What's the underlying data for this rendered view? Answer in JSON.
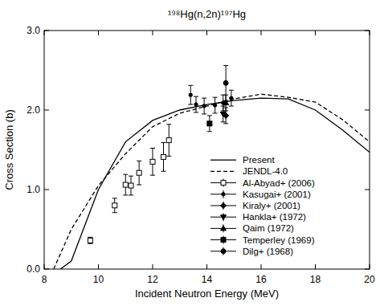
{
  "chart_data": {
    "type": "line",
    "title": "¹⁹⁸Hg(n,2n)¹⁹⁷Hg",
    "x_label": "Incident Neutron Energy (MeV)",
    "y_label": "Cross Section (b)",
    "xlim": [
      8,
      20
    ],
    "ylim": [
      0,
      3.0
    ],
    "xticks": [
      8,
      10,
      12,
      14,
      16,
      18,
      20
    ],
    "yticks": [
      {
        "value": 0,
        "label": "0.0"
      },
      {
        "value": 1,
        "label": "1.0"
      },
      {
        "value": 2,
        "label": "2.0"
      },
      {
        "value": 3,
        "label": "3.0"
      }
    ],
    "legend": "lower right",
    "series": [
      {
        "name": "Present",
        "type": "line",
        "line_style": "solid",
        "color": "#000000",
        "x": [
          8.6,
          9,
          10,
          11,
          12,
          13,
          14,
          15,
          16,
          17,
          18,
          19,
          20
        ],
        "values": [
          0,
          0.1,
          1.0,
          1.6,
          1.87,
          2.0,
          2.07,
          2.12,
          2.15,
          2.14,
          2.0,
          1.75,
          1.47
        ]
      },
      {
        "name": "JENDL-4.0",
        "type": "line",
        "line_style": "dashed",
        "color": "#000000",
        "x": [
          8.35,
          9,
          10,
          11,
          12,
          13,
          14,
          15,
          16,
          17,
          18,
          19,
          20
        ],
        "values": [
          0,
          0.5,
          1.05,
          1.45,
          1.79,
          1.96,
          2.05,
          2.14,
          2.2,
          2.16,
          2.1,
          1.88,
          1.6
        ]
      },
      {
        "name": "Al-Abyad+ (2006)",
        "type": "scatter",
        "marker": "open-square",
        "color": "#000000",
        "x": [
          9.7,
          10.6,
          11.0,
          11.2,
          11.5,
          12.0,
          12.4,
          12.6
        ],
        "values": [
          0.36,
          0.8,
          1.06,
          1.05,
          1.21,
          1.35,
          1.41,
          1.62
        ],
        "errors": [
          0.04,
          0.09,
          0.13,
          0.12,
          0.15,
          0.17,
          0.18,
          0.2
        ]
      },
      {
        "name": "Kasugai+ (2001)",
        "type": "scatter",
        "marker": "dot",
        "color": "#000000",
        "x": [
          13.4,
          13.6,
          13.9,
          14.3,
          14.6,
          14.9
        ],
        "values": [
          2.19,
          2.07,
          2.05,
          2.06,
          2.09,
          2.15
        ],
        "errors": [
          0.12,
          0.1,
          0.1,
          0.1,
          0.1,
          0.1
        ]
      },
      {
        "name": "Kiraly+ (2001)",
        "type": "scatter",
        "marker": "diamond",
        "color": "#000000",
        "x": [
          14.7
        ],
        "values": [
          1.93
        ],
        "errors": [
          0.1
        ]
      },
      {
        "name": "Hankla+ (1972)",
        "type": "scatter",
        "marker": "triangle-down",
        "color": "#000000",
        "x": [
          14.6
        ],
        "values": [
          1.95
        ],
        "errors": [
          0.1
        ]
      },
      {
        "name": "Qaim (1972)",
        "type": "scatter",
        "marker": "triangle",
        "color": "#000000",
        "x": [
          14.7
        ],
        "values": [
          2.09
        ],
        "errors": [
          0.1
        ]
      },
      {
        "name": "Temperley (1969)",
        "type": "scatter",
        "marker": "square",
        "color": "#000000",
        "x": [
          14.1
        ],
        "values": [
          1.83
        ],
        "errors": [
          0.1
        ]
      },
      {
        "name": "Dilg+ (1968)",
        "type": "scatter",
        "marker": "circle",
        "color": "#000000",
        "x": [
          14.7
        ],
        "values": [
          2.34
        ],
        "errors": [
          0.22
        ]
      }
    ]
  }
}
